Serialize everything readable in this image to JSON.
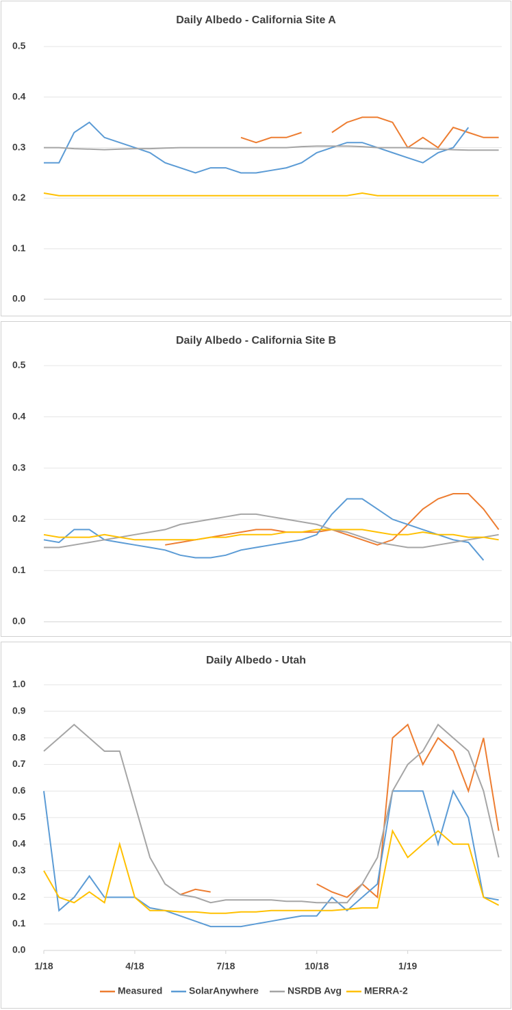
{
  "chart_data": [
    {
      "type": "line",
      "title": "Daily Albedo - California Site A",
      "x": [
        0,
        0.5,
        1,
        1.5,
        2,
        2.5,
        3,
        3.5,
        4,
        4.5,
        5,
        5.5,
        6,
        6.5,
        7,
        7.5,
        8,
        8.5,
        9,
        9.5,
        10,
        10.5,
        11,
        11.5,
        12,
        12.5,
        13,
        13.5,
        14,
        14.5,
        15
      ],
      "xlim": [
        0,
        15.1
      ],
      "ylim": [
        0,
        0.5
      ],
      "yticks": [
        {
          "value": 0,
          "label": "0.0"
        },
        0.1,
        0.2,
        0.3,
        0.4,
        0.5
      ],
      "grid": true,
      "series": [
        {
          "color": "#ed7d31",
          "values": [
            null,
            null,
            null,
            null,
            null,
            null,
            null,
            null,
            null,
            null,
            null,
            null,
            null,
            0.32,
            0.31,
            0.32,
            0.32,
            0.33,
            null,
            0.33,
            0.35,
            0.36,
            0.36,
            0.35,
            0.3,
            0.32,
            0.3,
            0.34,
            0.33,
            0.32,
            0.32
          ]
        },
        {
          "color": "#5b9bd5",
          "values": [
            0.27,
            0.27,
            0.33,
            0.35,
            0.32,
            0.31,
            0.3,
            0.29,
            0.27,
            0.26,
            0.25,
            0.26,
            0.26,
            0.25,
            0.25,
            0.255,
            0.26,
            0.27,
            0.29,
            0.3,
            0.31,
            0.31,
            0.3,
            0.29,
            0.28,
            0.27,
            0.29,
            0.3,
            0.34,
            null,
            null
          ]
        },
        {
          "color": "#a5a5a5",
          "values": [
            0.3,
            0.3,
            0.298,
            0.297,
            0.296,
            0.297,
            0.298,
            0.298,
            0.299,
            0.3,
            0.3,
            0.3,
            0.3,
            0.3,
            0.3,
            0.3,
            0.3,
            0.302,
            0.303,
            0.303,
            0.303,
            0.302,
            0.3,
            0.3,
            0.3,
            0.298,
            0.297,
            0.296,
            0.295,
            0.295,
            0.295
          ]
        },
        {
          "color": "#ffc000",
          "values": [
            0.21,
            0.205,
            0.205,
            0.205,
            0.205,
            0.205,
            0.205,
            0.205,
            0.205,
            0.205,
            0.205,
            0.205,
            0.205,
            0.205,
            0.205,
            0.205,
            0.205,
            0.205,
            0.205,
            0.205,
            0.205,
            0.21,
            0.205,
            0.205,
            0.205,
            0.205,
            0.205,
            0.205,
            0.205,
            0.205,
            0.205
          ]
        }
      ]
    },
    {
      "type": "line",
      "title": "Daily Albedo - California Site B",
      "x": [
        0,
        0.5,
        1,
        1.5,
        2,
        2.5,
        3,
        3.5,
        4,
        4.5,
        5,
        5.5,
        6,
        6.5,
        7,
        7.5,
        8,
        8.5,
        9,
        9.5,
        10,
        10.5,
        11,
        11.5,
        12,
        12.5,
        13,
        13.5,
        14,
        14.5,
        15
      ],
      "xlim": [
        0,
        15.1
      ],
      "ylim": [
        0,
        0.5
      ],
      "yticks": [
        {
          "value": 0,
          "label": "0.0"
        },
        0.1,
        0.2,
        0.3,
        0.4,
        0.5
      ],
      "grid": true,
      "series": [
        {
          "color": "#ed7d31",
          "values": [
            null,
            null,
            null,
            null,
            null,
            null,
            null,
            null,
            0.15,
            0.155,
            0.16,
            0.165,
            0.17,
            0.175,
            0.18,
            0.18,
            0.175,
            0.175,
            0.175,
            0.18,
            0.17,
            0.16,
            0.15,
            0.16,
            0.19,
            0.22,
            0.24,
            0.25,
            0.25,
            0.22,
            0.18
          ]
        },
        {
          "color": "#5b9bd5",
          "values": [
            0.16,
            0.155,
            0.18,
            0.18,
            0.16,
            0.155,
            0.15,
            0.145,
            0.14,
            0.13,
            0.125,
            0.125,
            0.13,
            0.14,
            0.145,
            0.15,
            0.155,
            0.16,
            0.17,
            0.21,
            0.24,
            0.24,
            0.22,
            0.2,
            0.19,
            0.18,
            0.17,
            0.16,
            0.155,
            0.12,
            null
          ]
        },
        {
          "color": "#a5a5a5",
          "values": [
            0.145,
            0.145,
            0.15,
            0.155,
            0.16,
            0.165,
            0.17,
            0.175,
            0.18,
            0.19,
            0.195,
            0.2,
            0.205,
            0.21,
            0.21,
            0.205,
            0.2,
            0.195,
            0.19,
            0.18,
            0.175,
            0.165,
            0.155,
            0.15,
            0.145,
            0.145,
            0.15,
            0.155,
            0.16,
            0.165,
            0.17
          ]
        },
        {
          "color": "#ffc000",
          "values": [
            0.17,
            0.165,
            0.165,
            0.165,
            0.17,
            0.165,
            0.16,
            0.16,
            0.16,
            0.16,
            0.16,
            0.165,
            0.165,
            0.17,
            0.17,
            0.17,
            0.175,
            0.175,
            0.18,
            0.18,
            0.18,
            0.18,
            0.175,
            0.17,
            0.17,
            0.175,
            0.17,
            0.17,
            0.165,
            0.165,
            0.16
          ]
        }
      ]
    },
    {
      "type": "line",
      "title": "Daily Albedo - Utah",
      "x": [
        0,
        0.5,
        1,
        1.5,
        2,
        2.5,
        3,
        3.5,
        4,
        4.5,
        5,
        5.5,
        6,
        6.5,
        7,
        7.5,
        8,
        8.5,
        9,
        9.5,
        10,
        10.5,
        11,
        11.5,
        12,
        12.5,
        13,
        13.5,
        14,
        14.5,
        15
      ],
      "xlim": [
        0,
        15.1
      ],
      "xticks": [
        {
          "value": 0,
          "label": "1/18"
        },
        {
          "value": 3,
          "label": "4/18"
        },
        {
          "value": 6,
          "label": "7/18"
        },
        {
          "value": 9,
          "label": "10/18"
        },
        {
          "value": 12,
          "label": "1/19"
        }
      ],
      "ylim": [
        0,
        1
      ],
      "yticks": [
        {
          "value": 0,
          "label": "0.0"
        },
        0.1,
        0.2,
        0.3,
        0.4,
        0.5,
        0.6,
        0.7,
        0.8,
        0.9,
        {
          "value": 1,
          "label": "1.0"
        }
      ],
      "grid": true,
      "series": [
        {
          "name": "Measured",
          "color": "#ed7d31",
          "values": [
            null,
            null,
            null,
            null,
            null,
            null,
            null,
            null,
            null,
            0.21,
            0.23,
            0.22,
            null,
            null,
            null,
            null,
            null,
            null,
            0.25,
            0.22,
            0.2,
            0.25,
            0.2,
            0.8,
            0.85,
            0.7,
            0.8,
            0.75,
            0.6,
            0.8,
            0.45
          ]
        },
        {
          "name": "SolarAnywhere",
          "color": "#5b9bd5",
          "values": [
            0.6,
            0.15,
            0.2,
            0.28,
            0.2,
            0.2,
            0.2,
            0.16,
            0.15,
            0.13,
            0.11,
            0.09,
            0.09,
            0.09,
            0.1,
            0.11,
            0.12,
            0.13,
            0.13,
            0.2,
            0.15,
            0.2,
            0.25,
            0.6,
            0.6,
            0.6,
            0.4,
            0.6,
            0.5,
            0.2,
            0.19
          ]
        },
        {
          "name": "NSRDB Avg",
          "color": "#a5a5a5",
          "values": [
            0.75,
            0.8,
            0.85,
            0.8,
            0.75,
            0.75,
            0.55,
            0.35,
            0.25,
            0.21,
            0.2,
            0.18,
            0.19,
            0.19,
            0.19,
            0.19,
            0.185,
            0.185,
            0.18,
            0.18,
            0.18,
            0.25,
            0.35,
            0.6,
            0.7,
            0.75,
            0.85,
            0.8,
            0.75,
            0.6,
            0.35
          ]
        },
        {
          "name": "MERRA-2",
          "color": "#ffc000",
          "values": [
            0.3,
            0.2,
            0.18,
            0.22,
            0.18,
            0.4,
            0.2,
            0.15,
            0.15,
            0.145,
            0.145,
            0.14,
            0.14,
            0.145,
            0.145,
            0.15,
            0.15,
            0.15,
            0.15,
            0.15,
            0.155,
            0.16,
            0.16,
            0.45,
            0.35,
            0.4,
            0.45,
            0.4,
            0.4,
            0.2,
            0.17
          ]
        }
      ]
    }
  ]
}
